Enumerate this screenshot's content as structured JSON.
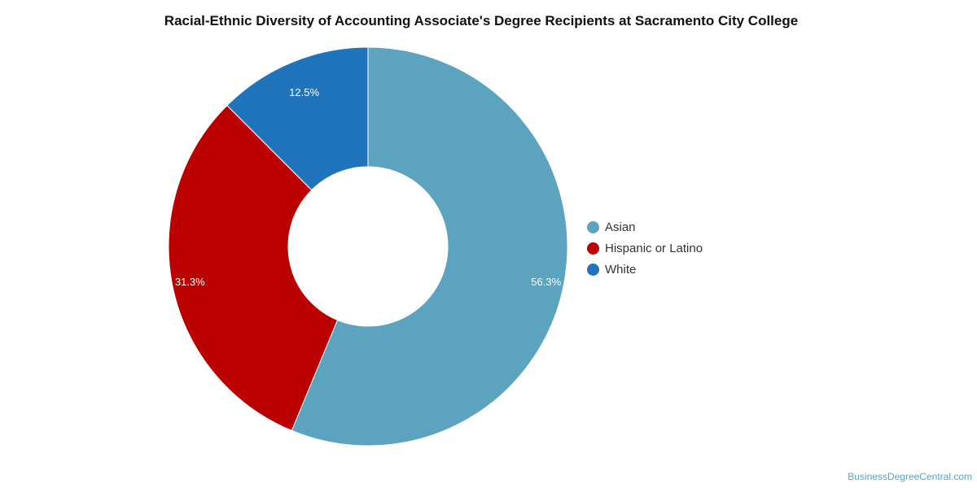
{
  "chart_data": {
    "type": "pie",
    "title": "Racial-Ethnic Diversity of Accounting Associate's Degree Recipients at Sacramento City College",
    "categories": [
      "Asian",
      "Hispanic or Latino",
      "White"
    ],
    "values": [
      56.3,
      31.3,
      12.5
    ],
    "data_labels": [
      "56.3%",
      "31.3%",
      "12.5%"
    ],
    "colors": [
      "#5ba3bf",
      "#bb0000",
      "#1f74bb"
    ],
    "legend_position": "right",
    "donut": true
  },
  "footer": {
    "source": "BusinessDegreeCentral.com"
  }
}
